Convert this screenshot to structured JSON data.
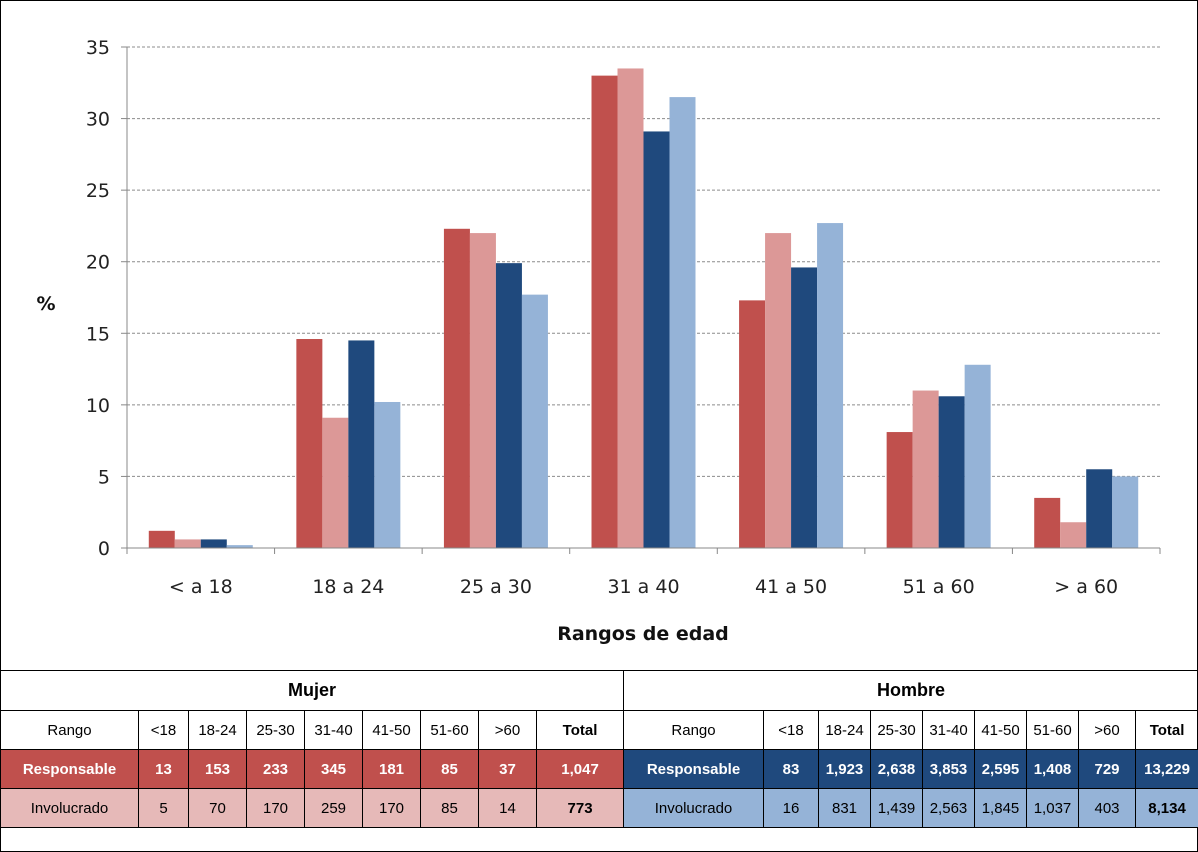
{
  "chart_data": {
    "type": "bar",
    "categories": [
      "< a 18",
      "18 a 24",
      "25 a 30",
      "31 a 40",
      "41 a 50",
      "51 a 60",
      "> a 60"
    ],
    "series": [
      {
        "color": "#c0504d",
        "values": [
          1.2,
          14.6,
          22.3,
          33.0,
          17.3,
          8.1,
          3.5
        ]
      },
      {
        "color": "#dc9897",
        "values": [
          0.6,
          9.1,
          22.0,
          33.5,
          22.0,
          11.0,
          1.8
        ]
      },
      {
        "color": "#1f497d",
        "values": [
          0.6,
          14.5,
          19.9,
          29.1,
          19.6,
          10.6,
          5.5
        ]
      },
      {
        "color": "#95b3d7",
        "values": [
          0.2,
          10.2,
          17.7,
          31.5,
          22.7,
          12.8,
          5.0
        ]
      }
    ],
    "title": "",
    "xlabel": "Rangos de edad",
    "ylabel": "%",
    "ylim": [
      0,
      35
    ],
    "yticks": [
      "0",
      "5",
      "10",
      "15",
      "20",
      "25",
      "30",
      "35"
    ],
    "grid": true
  },
  "table": {
    "mujer": {
      "title": "Mujer",
      "headers": [
        "Rango",
        "<18",
        "18-24",
        "25-30",
        "31-40",
        "41-50",
        "51-60",
        ">60",
        "Total"
      ],
      "responsable": [
        "Responsable",
        "13",
        "153",
        "233",
        "345",
        "181",
        "85",
        "37",
        "1,047"
      ],
      "involucrado": [
        "Involucrado",
        "5",
        "70",
        "170",
        "259",
        "170",
        "85",
        "14",
        "773"
      ]
    },
    "hombre": {
      "title": "Hombre",
      "headers": [
        "Rango",
        "<18",
        "18-24",
        "25-30",
        "31-40",
        "41-50",
        "51-60",
        ">60",
        "Total"
      ],
      "responsable": [
        "Responsable",
        "83",
        "1,923",
        "2,638",
        "3,853",
        "2,595",
        "1,408",
        "729",
        "13,229"
      ],
      "involucrado": [
        "Involucrado",
        "16",
        "831",
        "1,439",
        "2,563",
        "1,845",
        "1,037",
        "403",
        "8,134"
      ]
    },
    "colors": {
      "mujer_resp": "#c0504d",
      "mujer_inv": "#e6b9b8",
      "hombre_resp": "#1f497d",
      "hombre_inv": "#95b3d7"
    }
  }
}
